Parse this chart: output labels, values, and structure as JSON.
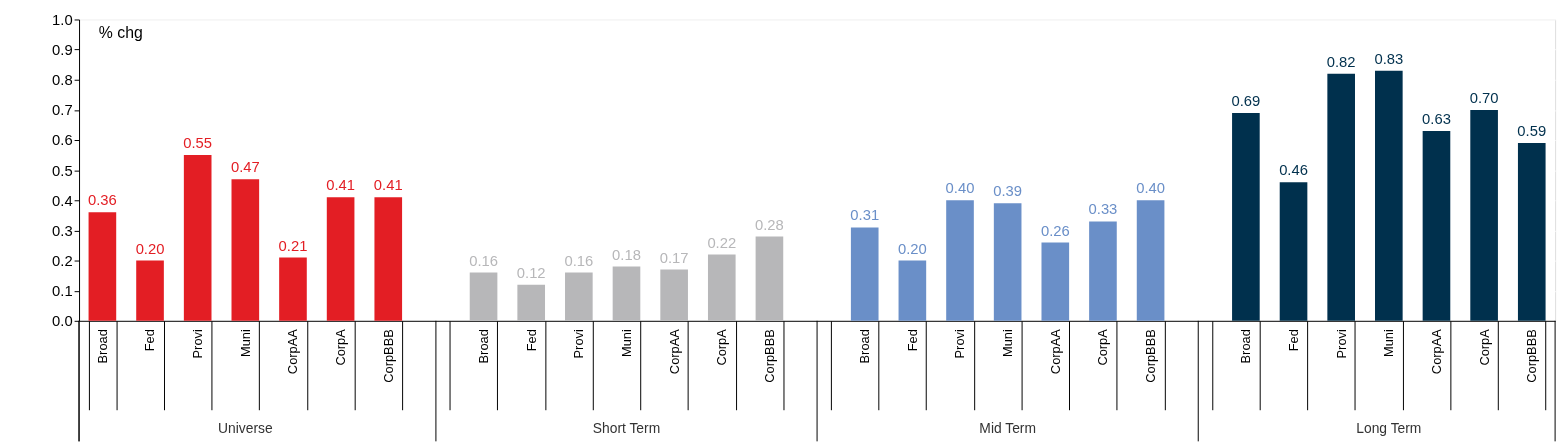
{
  "chart_data": {
    "type": "bar",
    "categories": [
      "Broad",
      "Fed",
      "Provi",
      "Muni",
      "CorpAA",
      "CorpA",
      "CorpBBB",
      null,
      "Broad",
      "Fed",
      "Provi",
      "Muni",
      "CorpAA",
      "CorpA",
      "CorpBBB",
      null,
      "Broad",
      "Fed",
      "Provi",
      "Muni",
      "CorpAA",
      "CorpA",
      "CorpBBB",
      null,
      "Broad",
      "Fed",
      "Provi",
      "Muni",
      "CorpAA",
      "CorpA",
      "CorpBBB"
    ],
    "series": [
      {
        "name": "Universe",
        "color": "#e31e24",
        "values": [
          0.36,
          0.2,
          0.55,
          0.47,
          0.21,
          0.41,
          0.41,
          null,
          null,
          null,
          null,
          null,
          null,
          null,
          null,
          null,
          null,
          null,
          null,
          null,
          null,
          null,
          null,
          null,
          null,
          null,
          null,
          null,
          null,
          null,
          null
        ]
      },
      {
        "name": "Short Term",
        "color": "#b7b7b9",
        "values": [
          null,
          null,
          null,
          null,
          null,
          null,
          null,
          null,
          0.16,
          0.12,
          0.16,
          0.18,
          0.17,
          0.22,
          0.28,
          null,
          null,
          null,
          null,
          null,
          null,
          null,
          null,
          null,
          null,
          null,
          null,
          null,
          null,
          null,
          null
        ]
      },
      {
        "name": "Mid Term",
        "color": "#6a8fc8",
        "values": [
          null,
          null,
          null,
          null,
          null,
          null,
          null,
          null,
          null,
          null,
          null,
          null,
          null,
          null,
          null,
          null,
          0.31,
          0.2,
          0.4,
          0.39,
          0.26,
          0.33,
          0.4,
          null,
          null,
          null,
          null,
          null,
          null,
          null,
          null
        ]
      },
      {
        "name": "Long Term",
        "color": "#00304d",
        "values": [
          null,
          null,
          null,
          null,
          null,
          null,
          null,
          null,
          null,
          null,
          null,
          null,
          null,
          null,
          null,
          null,
          null,
          null,
          null,
          null,
          null,
          null,
          null,
          null,
          0.69,
          0.46,
          0.82,
          0.83,
          0.63,
          0.7,
          0.59
        ]
      }
    ],
    "ylim": [
      0,
      1.0
    ],
    "yticks": [
      {
        "value": 0,
        "label": "0.0"
      },
      0.1,
      0.2,
      0.3,
      0.4,
      0.5,
      0.6,
      0.7,
      0.8,
      0.9,
      {
        "value": 1.0,
        "label": "1.0"
      }
    ],
    "value_labels": [
      [
        "0.36",
        "0.20",
        "0.55",
        "0.47",
        "0.21",
        "0.41",
        "0.41",
        null,
        null,
        null,
        null,
        null,
        null,
        null,
        null,
        null,
        null,
        null,
        null,
        null,
        null,
        null,
        null,
        null,
        null,
        null,
        null,
        null,
        null,
        null,
        null
      ],
      [
        null,
        null,
        null,
        null,
        null,
        null,
        null,
        null,
        "0.16",
        "0.12",
        "0.16",
        "0.18",
        "0.17",
        "0.22",
        "0.28",
        null,
        null,
        null,
        null,
        null,
        null,
        null,
        null,
        null,
        null,
        null,
        null,
        null,
        null,
        null,
        null
      ],
      [
        null,
        null,
        null,
        null,
        null,
        null,
        null,
        null,
        null,
        null,
        null,
        null,
        null,
        null,
        null,
        null,
        "0.31",
        "0.20",
        "0.40",
        "0.39",
        "0.26",
        "0.33",
        "0.40",
        null,
        null,
        null,
        null,
        null,
        null,
        null,
        null
      ],
      [
        null,
        null,
        null,
        null,
        null,
        null,
        null,
        null,
        null,
        null,
        null,
        null,
        null,
        null,
        null,
        null,
        null,
        null,
        null,
        null,
        null,
        null,
        null,
        null,
        "0.69",
        "0.46",
        "0.82",
        "0.83",
        "0.63",
        "0.70",
        "0.59"
      ]
    ],
    "grid": "y",
    "legend": false,
    "annotations": [
      "% chg"
    ]
  }
}
